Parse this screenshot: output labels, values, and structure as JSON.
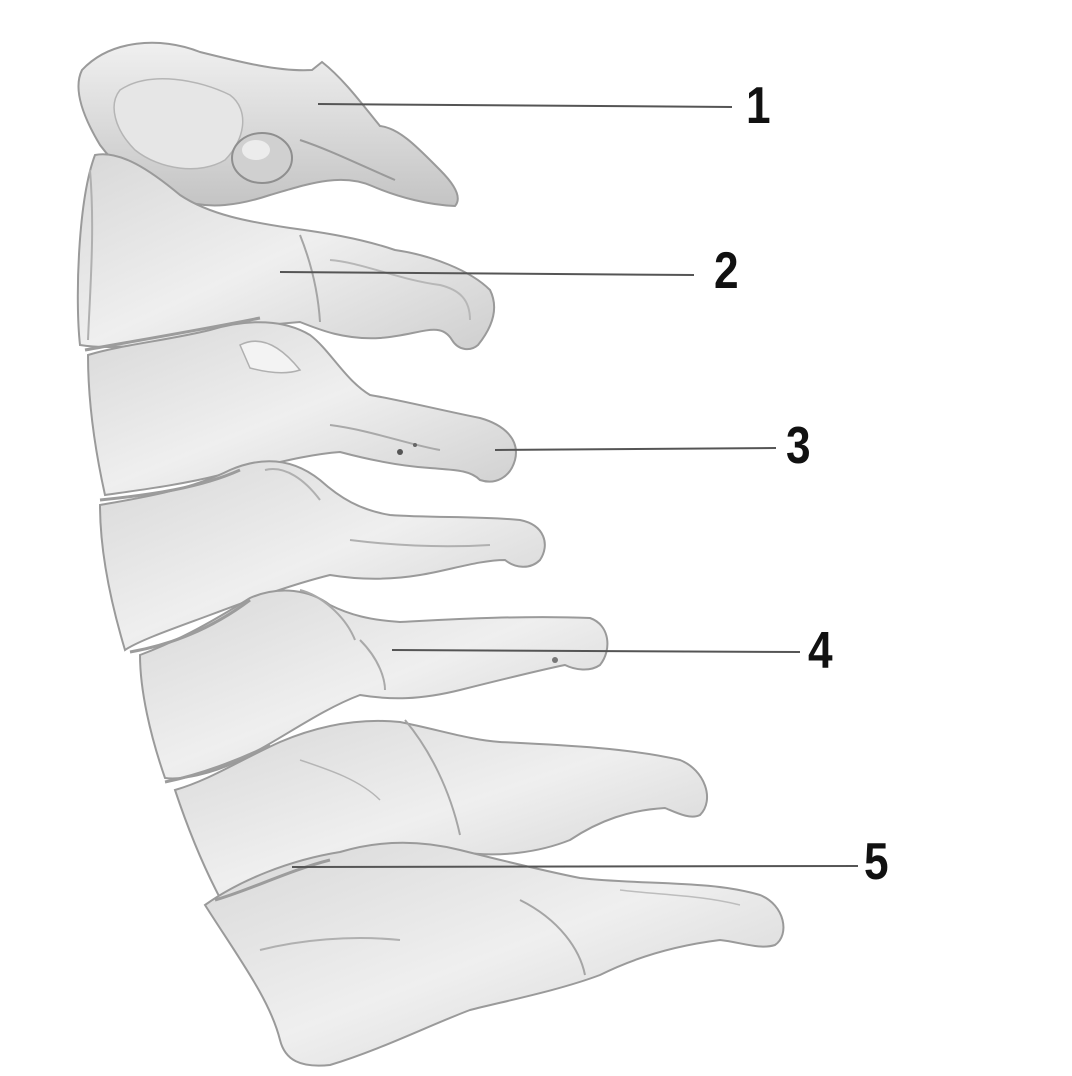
{
  "figure": {
    "subject": "cervical-spine-lateral-view",
    "colors": {
      "background": "#ffffff",
      "bone_light": "#eeeeee",
      "bone_mid": "#d6d6d6",
      "bone_shadow": "#a9a9a9",
      "leader_line": "#555555",
      "label_text": "#111111"
    },
    "labels": [
      {
        "id": "1",
        "text": "1"
      },
      {
        "id": "2",
        "text": "2"
      },
      {
        "id": "3",
        "text": "3"
      },
      {
        "id": "4",
        "text": "4"
      },
      {
        "id": "5",
        "text": "5"
      }
    ]
  }
}
